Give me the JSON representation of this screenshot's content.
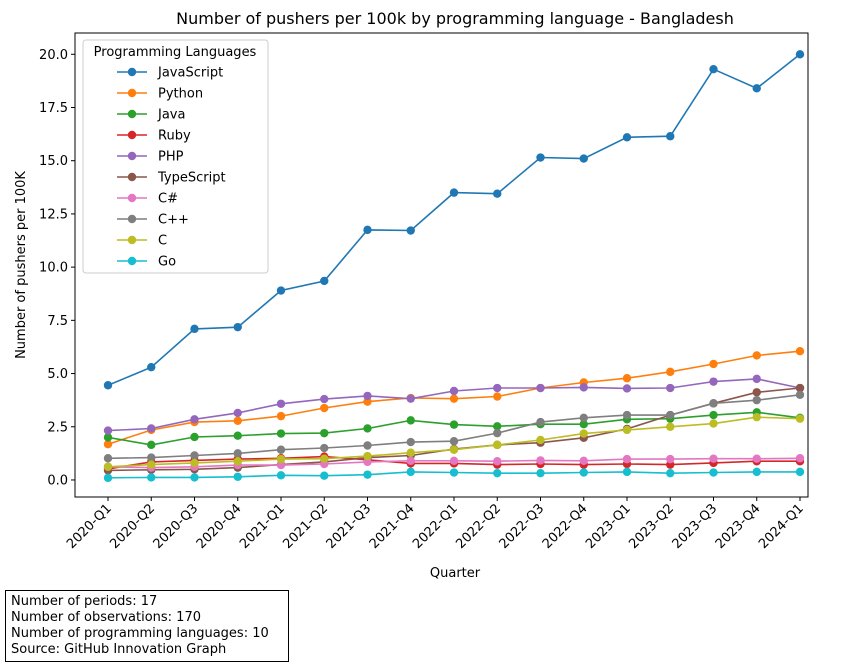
{
  "chart_data": {
    "type": "line",
    "title": "Number of pushers per 100k by programming language - Bangladesh",
    "xlabel": "Quarter",
    "ylabel": "Number of pushers per 100K",
    "ylim": [
      -0.8,
      21.0
    ],
    "yticks": [
      "0.0",
      "2.5",
      "5.0",
      "7.5",
      "10.0",
      "12.5",
      "15.0",
      "17.5",
      "20.0"
    ],
    "ytick_values": [
      0,
      2.5,
      5,
      7.5,
      10,
      12.5,
      15,
      17.5,
      20
    ],
    "grid": false,
    "legend_title": "Programming Languages",
    "legend_position": "top-left",
    "categories": [
      "2020-Q1",
      "2020-Q2",
      "2020-Q3",
      "2020-Q4",
      "2021-Q1",
      "2021-Q2",
      "2021-Q3",
      "2021-Q4",
      "2022-Q1",
      "2022-Q2",
      "2022-Q3",
      "2022-Q4",
      "2023-Q1",
      "2023-Q2",
      "2023-Q3",
      "2023-Q4",
      "2024-Q1"
    ],
    "series": [
      {
        "name": "JavaScript",
        "color": "#1f77b4",
        "values": [
          4.45,
          5.3,
          7.1,
          7.18,
          8.9,
          9.35,
          11.75,
          11.72,
          13.5,
          13.45,
          15.15,
          15.1,
          16.1,
          16.15,
          19.3,
          18.4,
          20.0
        ]
      },
      {
        "name": "Python",
        "color": "#ff7f0e",
        "values": [
          1.68,
          2.35,
          2.72,
          2.78,
          3.0,
          3.38,
          3.68,
          3.85,
          3.82,
          3.92,
          4.32,
          4.58,
          4.78,
          5.08,
          5.45,
          5.85,
          6.05
        ]
      },
      {
        "name": "Java",
        "color": "#2ca02c",
        "values": [
          2.0,
          1.65,
          2.02,
          2.08,
          2.18,
          2.2,
          2.42,
          2.8,
          2.6,
          2.52,
          2.62,
          2.62,
          2.85,
          2.88,
          3.05,
          3.18,
          2.92
        ]
      },
      {
        "name": "Ruby",
        "color": "#d62728",
        "values": [
          0.52,
          0.85,
          0.92,
          0.98,
          1.02,
          1.1,
          0.95,
          0.78,
          0.78,
          0.72,
          0.75,
          0.72,
          0.75,
          0.72,
          0.8,
          0.88,
          0.88
        ]
      },
      {
        "name": "PHP",
        "color": "#9467bd",
        "values": [
          2.32,
          2.42,
          2.85,
          3.15,
          3.58,
          3.8,
          3.95,
          3.82,
          4.18,
          4.32,
          4.32,
          4.35,
          4.3,
          4.32,
          4.62,
          4.75,
          4.32
        ]
      },
      {
        "name": "TypeScript",
        "color": "#8c564b",
        "values": [
          0.45,
          0.48,
          0.5,
          0.58,
          0.72,
          0.85,
          1.05,
          1.15,
          1.45,
          1.65,
          1.75,
          1.98,
          2.4,
          3.05,
          3.6,
          4.12,
          4.32
        ]
      },
      {
        "name": "C#",
        "color": "#e377c2",
        "values": [
          0.62,
          0.58,
          0.62,
          0.7,
          0.7,
          0.75,
          0.85,
          0.9,
          0.9,
          0.88,
          0.92,
          0.9,
          0.98,
          0.98,
          1.0,
          1.0,
          1.02
        ]
      },
      {
        "name": "C++",
        "color": "#7f7f7f",
        "values": [
          1.02,
          1.05,
          1.15,
          1.25,
          1.42,
          1.5,
          1.62,
          1.78,
          1.82,
          2.2,
          2.72,
          2.92,
          3.05,
          3.05,
          3.6,
          3.75,
          4.0
        ]
      },
      {
        "name": "C",
        "color": "#bcbd22",
        "values": [
          0.62,
          0.72,
          0.8,
          0.88,
          0.98,
          1.0,
          1.12,
          1.28,
          1.42,
          1.65,
          1.88,
          2.18,
          2.35,
          2.5,
          2.65,
          2.95,
          2.88
        ]
      },
      {
        "name": "Go",
        "color": "#17becf",
        "values": [
          0.1,
          0.12,
          0.12,
          0.15,
          0.22,
          0.2,
          0.25,
          0.38,
          0.35,
          0.32,
          0.32,
          0.35,
          0.38,
          0.32,
          0.35,
          0.38,
          0.38
        ]
      }
    ]
  },
  "notes": {
    "line1": "Number of periods: 17",
    "line2": "Number of observations: 170",
    "line3": "Number of programming languages: 10",
    "line4": "Source: GitHub Innovation Graph"
  }
}
